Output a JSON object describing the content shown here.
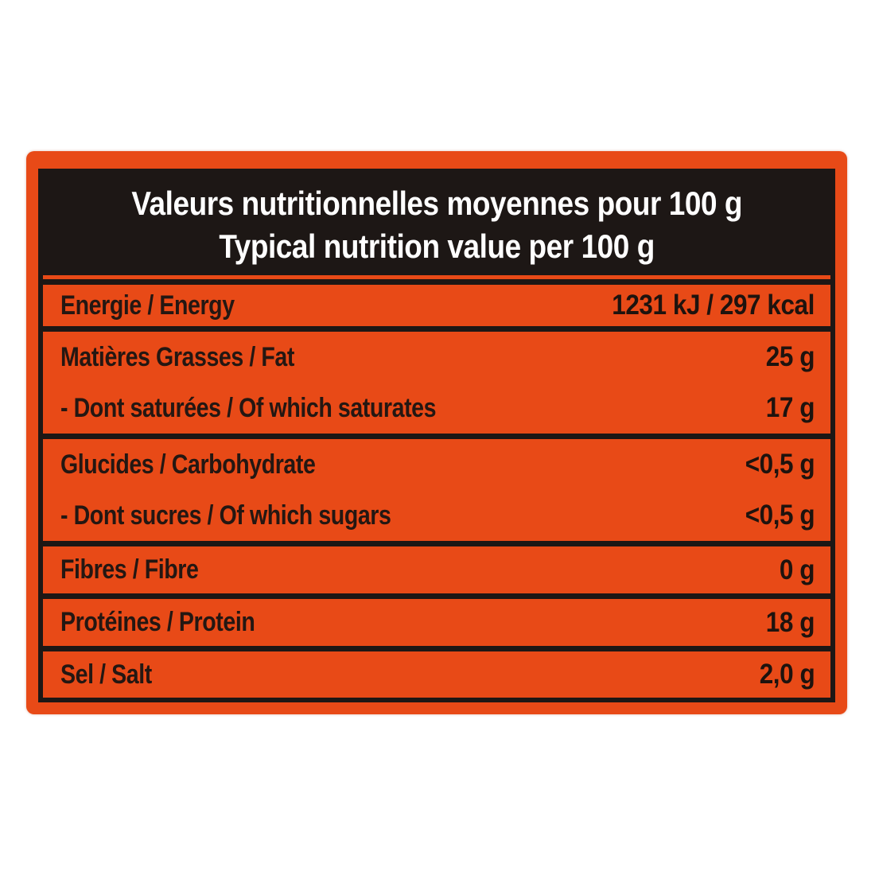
{
  "label": {
    "header": {
      "line_fr": "Valeurs nutritionnelles moyennes pour 100 g",
      "line_en": "Typical nutrition value per 100 g"
    },
    "groups": [
      {
        "rows": [
          {
            "label": "Energie / Energy",
            "value": "1231 kJ / 297 kcal"
          }
        ]
      },
      {
        "rows": [
          {
            "label": "Matières Grasses / Fat",
            "value": "25 g"
          },
          {
            "label": "- Dont saturées / Of which saturates",
            "value": "17 g"
          }
        ]
      },
      {
        "rows": [
          {
            "label": "Glucides / Carbohydrate",
            "value": "<0,5 g"
          },
          {
            "label": "- Dont sucres / Of which sugars",
            "value": "<0,5 g"
          }
        ]
      },
      {
        "rows": [
          {
            "label": "Fibres / Fibre",
            "value": "0 g"
          }
        ]
      },
      {
        "rows": [
          {
            "label": "Protéines / Protein",
            "value": "18 g"
          }
        ]
      },
      {
        "rows": [
          {
            "label": "Sel / Salt",
            "value": "2,0 g"
          }
        ]
      }
    ],
    "colors": {
      "card_orange": "#E84A17",
      "ink_black": "#1D1715",
      "title_white": "#FFFFFF"
    }
  }
}
